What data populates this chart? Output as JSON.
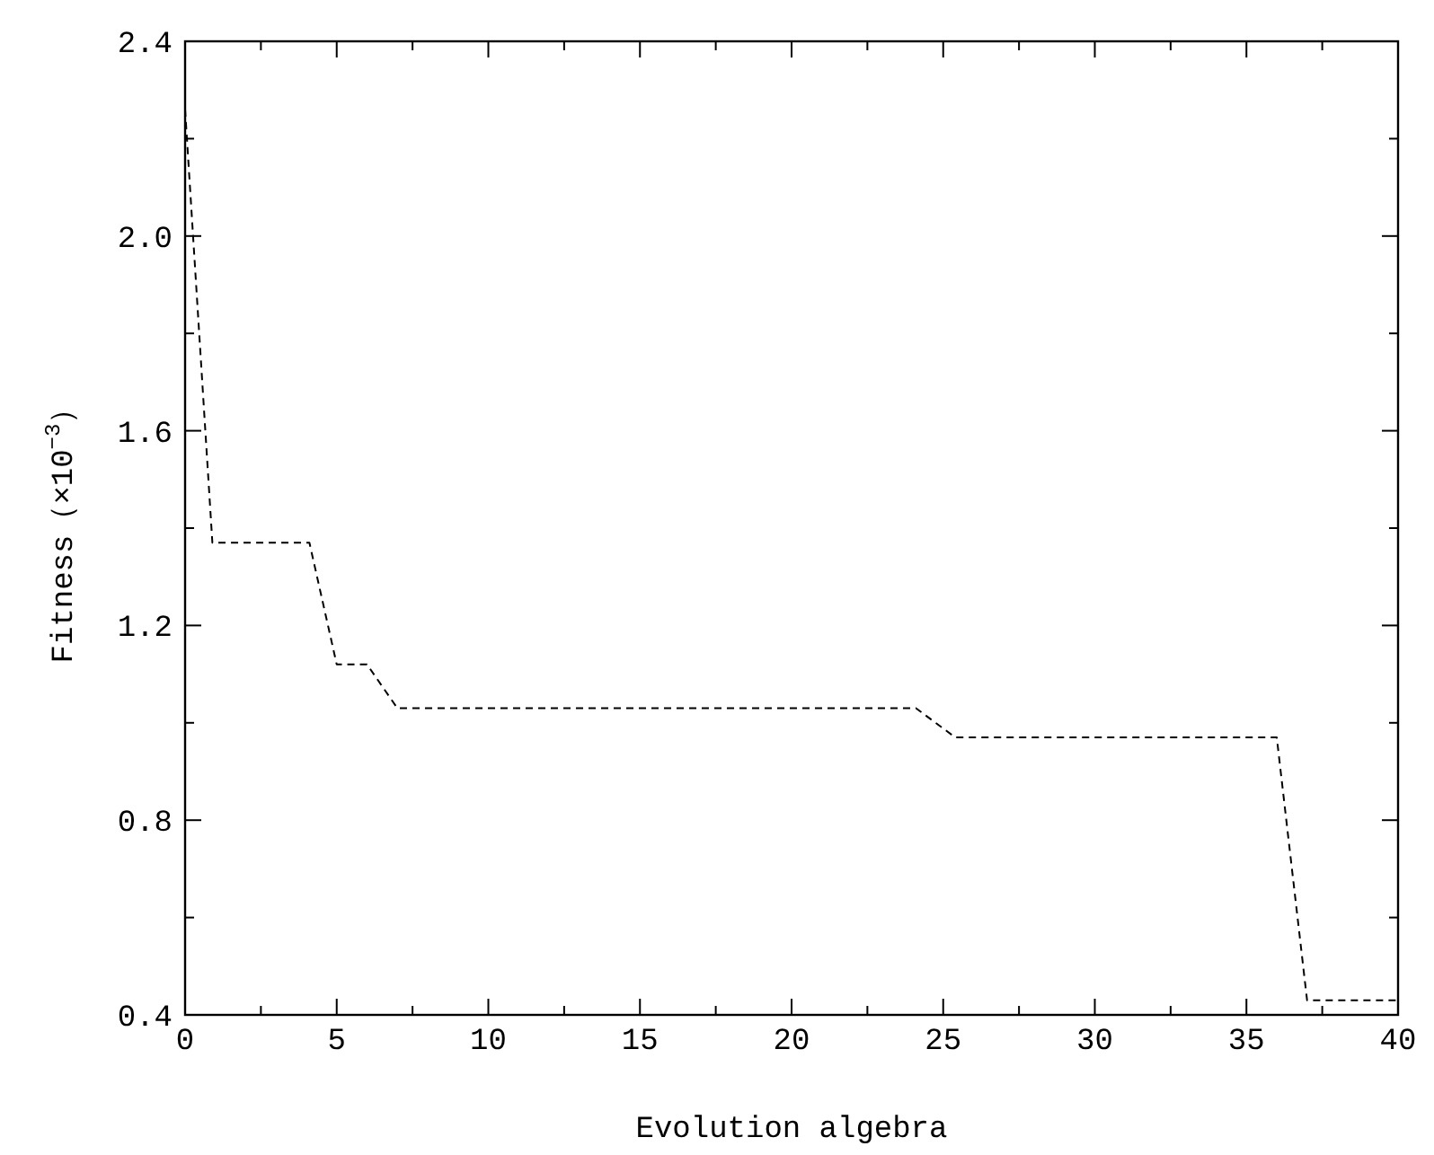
{
  "chart_data": {
    "type": "line",
    "xlabel": "Evolution algebra",
    "ylabel": "Fitness（×10$^{−3}$）",
    "xlim": [
      0,
      40
    ],
    "ylim": [
      0.4,
      2.4
    ],
    "xticks": [
      0,
      {
        "value": 2.5,
        "label": null
      },
      5,
      {
        "value": 7.5,
        "label": null
      },
      10,
      {
        "value": 12.5,
        "label": null
      },
      15,
      {
        "value": 17.5,
        "label": null
      },
      20,
      {
        "value": 22.5,
        "label": null
      },
      25,
      {
        "value": 27.5,
        "label": null
      },
      30,
      {
        "value": 32.5,
        "label": null
      },
      35,
      {
        "value": 37.5,
        "label": null
      },
      40
    ],
    "yticks": [
      0.4,
      {
        "value": 0.6,
        "label": null
      },
      0.8,
      {
        "value": 1.0,
        "label": null
      },
      1.2,
      {
        "value": 1.4,
        "label": null
      },
      1.6,
      {
        "value": 1.8,
        "label": null
      },
      {
        "value": 2.0,
        "label": "2.0"
      },
      {
        "value": 2.2,
        "label": null
      },
      2.4
    ],
    "grid": false,
    "marker": "none",
    "line_style": "dashed",
    "series": [
      {
        "color": "#000000",
        "x": [
          0,
          0.9,
          4.1,
          5.0,
          6.0,
          7.0,
          24.1,
          25.4,
          36.0,
          37.0,
          40
        ],
        "values": [
          2.26,
          1.37,
          1.37,
          1.12,
          1.12,
          1.03,
          1.03,
          0.97,
          0.97,
          0.43,
          0.43
        ]
      }
    ]
  }
}
